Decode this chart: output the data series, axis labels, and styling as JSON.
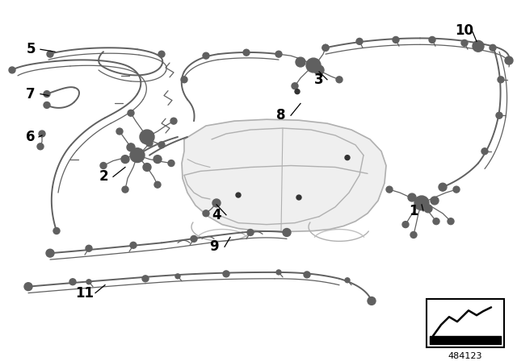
{
  "background_color": "#ffffff",
  "line_color": "#606060",
  "car_color": "#e8e8e8",
  "car_outline_color": "#aaaaaa",
  "label_color": "#000000",
  "part_number": "484123",
  "figsize": [
    6.4,
    4.48
  ],
  "dpi": 100,
  "lw_harness": 1.4,
  "lw_thin": 0.9,
  "blob_r": 0.006,
  "connector_r": 0.012
}
